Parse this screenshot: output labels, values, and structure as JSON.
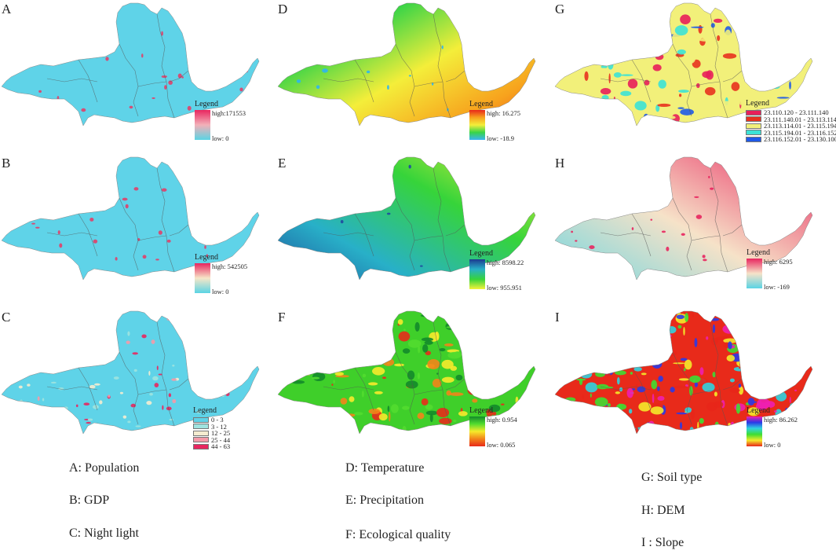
{
  "panels": [
    {
      "letter": "A",
      "legend_title": "Legend",
      "high": "high:171553",
      "low": "low: 0",
      "ramp": [
        "#e8265f",
        "#f3b0b8",
        "#5ad4e4"
      ],
      "base": "#5fd3e8",
      "spots": "#e0406a"
    },
    {
      "letter": "B",
      "legend_title": "Legend",
      "high": "high: 542505",
      "low": "low: 0",
      "ramp": [
        "#e8265f",
        "#f6e6c8",
        "#5ad4e4"
      ],
      "base": "#5fd3e8",
      "spots": "#e0406a"
    },
    {
      "letter": "C",
      "legend_title": "Legend",
      "classes": [
        {
          "label": "0 - 3",
          "color": "#5fd3e8"
        },
        {
          "label": "3 - 12",
          "color": "#9fe3df"
        },
        {
          "label": "12 - 25",
          "color": "#f4ecd0"
        },
        {
          "label": "25 - 44",
          "color": "#f59aa8"
        },
        {
          "label": "44 - 63",
          "color": "#e8265f"
        }
      ],
      "base": "#5fd3e8",
      "spots": "#e0406a"
    },
    {
      "letter": "D",
      "legend_title": "Legend",
      "high": "high: 16.275",
      "low": "low: -18.9",
      "ramp": [
        "#e8261a",
        "#f7a21d",
        "#f4ee3a",
        "#38d447",
        "#39b4f4"
      ],
      "base": "#e94a1f",
      "spots": "#2fb5f0"
    },
    {
      "letter": "E",
      "legend_title": "Legend",
      "high": "high: 8598.22",
      "low": "low: 955.951",
      "ramp": [
        "#1b3a8f",
        "#28b0c8",
        "#36d43a",
        "#f6f23a"
      ],
      "base": "#9edc2a",
      "spots": "#1f4aa0"
    },
    {
      "letter": "F",
      "legend_title": "Legend",
      "high": "high: 0.954",
      "low": "low: 0.065",
      "ramp": [
        "#138a2a",
        "#52dc2f",
        "#f6ea2b",
        "#f2841a",
        "#e82a1a"
      ],
      "base": "#3fcf2a",
      "spots": "#e8361a"
    },
    {
      "letter": "G",
      "legend_title": "Legend",
      "classes": [
        {
          "label": "23.110.120 - 23.111.140",
          "color": "#e81f5a"
        },
        {
          "label": "23.111.140.01 - 23.113.114",
          "color": "#e8321e"
        },
        {
          "label": "23.113.114.01 - 23.115.194",
          "color": "#f2f07a"
        },
        {
          "label": "23.115.194.01 - 23.116.152",
          "color": "#3ce2d6"
        },
        {
          "label": "23.116.152.01 - 23.130.100",
          "color": "#1f5ae8"
        }
      ],
      "base": "#f2f07a",
      "spots": "#e8321e"
    },
    {
      "letter": "H",
      "legend_title": "Legend",
      "high": "high: 6295",
      "low": "low: -169",
      "ramp": [
        "#e8265f",
        "#f6e2c8",
        "#5ad4e4"
      ],
      "base": "#c8ecec",
      "spots": "#e8265f"
    },
    {
      "letter": "I",
      "legend_title": "Legend",
      "high": "high: 86.262",
      "low": "low: 0",
      "ramp": [
        "#ee1fb0",
        "#2a3ae8",
        "#2fd4e0",
        "#3ede32",
        "#f4ea2a",
        "#e8261a"
      ],
      "base": "#e82a1a",
      "spots": "#3cd63a"
    }
  ],
  "captions": [
    {
      "text": "A: Population"
    },
    {
      "text": "B: GDP"
    },
    {
      "text": "C: Night light"
    },
    {
      "text": "D: Temperature"
    },
    {
      "text": "E: Precipitation"
    },
    {
      "text": "F: Ecological quality"
    },
    {
      "text": "G: Soil type"
    },
    {
      "text": "H: DEM"
    },
    {
      "text": "I : Slope"
    }
  ]
}
